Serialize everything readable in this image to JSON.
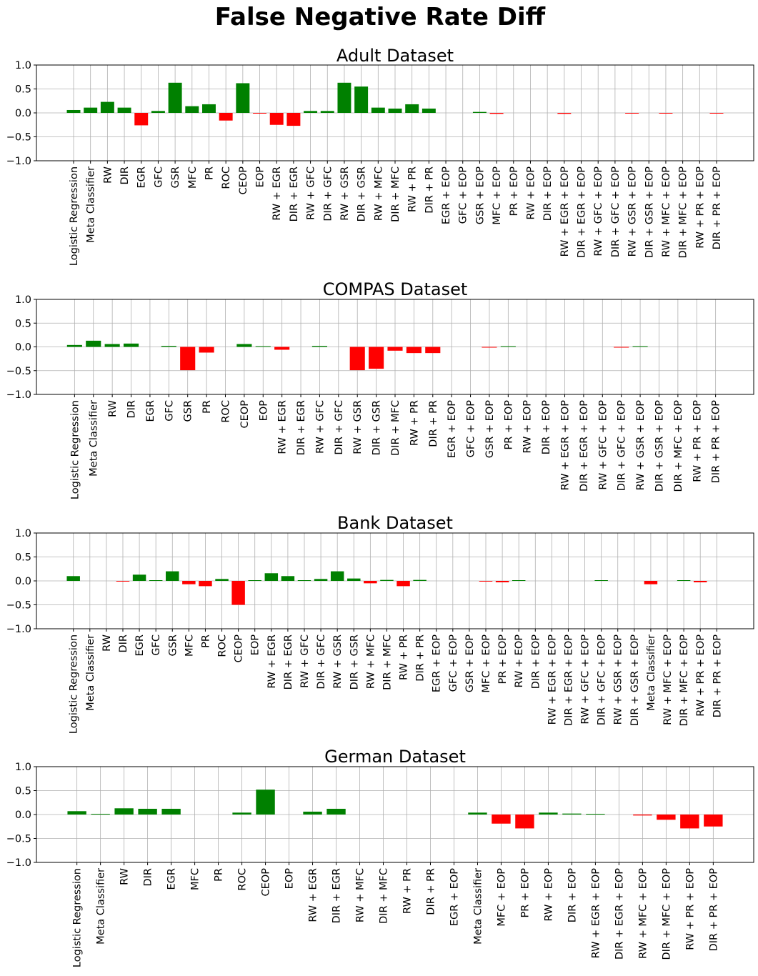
{
  "suptitle": "False Negative Rate Diff",
  "colors": {
    "positive": "#008000",
    "negative": "#ff0000",
    "grid": "#b0b0b0"
  },
  "chart_data": [
    {
      "type": "bar",
      "title": "Adult Dataset",
      "ylim": [
        -1.0,
        1.0
      ],
      "yticks": [
        "1.0",
        "0.5",
        "0.0",
        "−0.5",
        "−1.0"
      ],
      "grid": true,
      "categories": [
        "Logistic Regression",
        "Meta Classifier",
        "RW",
        "DIR",
        "EGR",
        "GFC",
        "GSR",
        "MFC",
        "PR",
        "ROC",
        "CEOP",
        "EOP",
        "RW + EGR",
        "DIR + EGR",
        "RW + GFC",
        "DIR + GFC",
        "RW + GSR",
        "DIR + GSR",
        "RW + MFC",
        "DIR + MFC",
        "RW + PR",
        "DIR + PR",
        "EGR + EOP",
        "GFC + EOP",
        "GSR + EOP",
        "MFC + EOP",
        "PR + EOP",
        "RW + EOP",
        "DIR + EOP",
        "RW + EGR + EOP",
        "DIR + EGR + EOP",
        "RW + GFC + EOP",
        "DIR + GFC + EOP",
        "RW + GSR + EOP",
        "DIR + GSR + EOP",
        "RW + MFC + EOP",
        "DIR + MFC + EOP",
        "RW + PR + EOP",
        "DIR + PR + EOP"
      ],
      "values": [
        0.06,
        0.11,
        0.23,
        0.11,
        -0.26,
        0.04,
        0.63,
        0.14,
        0.18,
        -0.16,
        0.62,
        -0.005,
        -0.25,
        -0.27,
        0.04,
        0.04,
        0.63,
        0.55,
        0.11,
        0.09,
        0.18,
        0.09,
        0.0,
        0.0,
        0.02,
        -0.02,
        0.0,
        0.0,
        0.0,
        -0.02,
        0.0,
        0.0,
        0.0,
        -0.005,
        0.0,
        -0.005,
        0.0,
        0.0,
        -0.005
      ]
    },
    {
      "type": "bar",
      "title": "COMPAS Dataset",
      "ylim": [
        -1.0,
        1.0
      ],
      "yticks": [
        "1.0",
        "0.5",
        "0.0",
        "−0.5",
        "−1.0"
      ],
      "grid": true,
      "categories": [
        "Logistic Regression",
        "Meta Classifier",
        "RW",
        "DIR",
        "EGR",
        "GFC",
        "GSR",
        "PR",
        "ROC",
        "CEOP",
        "EOP",
        "RW + EGR",
        "DIR + EGR",
        "RW + GFC",
        "DIR + GFC",
        "RW + GSR",
        "DIR + GSR",
        "DIR + MFC",
        "RW + PR",
        "DIR + PR",
        "EGR + EOP",
        "GFC + EOP",
        "GSR + EOP",
        "PR + EOP",
        "RW + EOP",
        "DIR + EOP",
        "RW + EGR + EOP",
        "DIR + EGR + EOP",
        "RW + GFC + EOP",
        "DIR + GFC + EOP",
        "RW + GSR + EOP",
        "DIR + GSR + EOP",
        "DIR + MFC + EOP",
        "RW + PR + EOP",
        "DIR + PR + EOP"
      ],
      "values": [
        0.04,
        0.13,
        0.06,
        0.07,
        0.0,
        0.02,
        -0.49,
        -0.12,
        0.0,
        0.06,
        0.01,
        -0.06,
        0.0,
        0.02,
        0.0,
        -0.49,
        -0.46,
        -0.08,
        -0.13,
        -0.13,
        0.0,
        0.0,
        -0.005,
        0.01,
        0.0,
        0.0,
        0.0,
        0.0,
        0.0,
        -0.005,
        0.01,
        0.0,
        0.0,
        0.0,
        0.0
      ]
    },
    {
      "type": "bar",
      "title": "Bank Dataset",
      "ylim": [
        -1.0,
        1.0
      ],
      "yticks": [
        "1.0",
        "0.5",
        "0.0",
        "−0.5",
        "−1.0"
      ],
      "grid": true,
      "categories": [
        "Logistic Regression",
        "Meta Classifier",
        "RW",
        "DIR",
        "EGR",
        "GFC",
        "GSR",
        "MFC",
        "PR",
        "ROC",
        "CEOP",
        "EOP",
        "RW + EGR",
        "DIR + EGR",
        "RW + GFC",
        "DIR + GFC",
        "RW + GSR",
        "DIR + GSR",
        "RW + MFC",
        "DIR + MFC",
        "RW + PR",
        "DIR + PR",
        "EGR + EOP",
        "GFC + EOP",
        "GSR + EOP",
        "MFC + EOP",
        "PR + EOP",
        "RW + EOP",
        "DIR + EOP",
        "RW + EGR + EOP",
        "DIR + EGR + EOP",
        "RW + GFC + EOP",
        "DIR + GFC + EOP",
        "RW + GSR + EOP",
        "DIR + GSR + EOP",
        "Meta Classifier",
        "RW + MFC + EOP",
        "DIR + MFC + EOP",
        "RW + PR + EOP",
        "DIR + PR + EOP"
      ],
      "values": [
        0.1,
        0.0,
        0.0,
        -0.005,
        0.13,
        0.01,
        0.2,
        -0.07,
        -0.11,
        0.04,
        -0.5,
        0.01,
        0.16,
        0.1,
        0.01,
        0.04,
        0.2,
        0.05,
        -0.05,
        0.02,
        -0.11,
        0.02,
        0.0,
        0.0,
        0.0,
        -0.005,
        -0.03,
        0.01,
        0.0,
        0.0,
        0.0,
        0.0,
        0.01,
        0.0,
        0.0,
        -0.07,
        0.0,
        0.01,
        -0.03,
        0.0
      ]
    },
    {
      "type": "bar",
      "title": "German Dataset",
      "ylim": [
        -1.0,
        1.0
      ],
      "yticks": [
        "1.0",
        "0.5",
        "0.0",
        "−0.5",
        "−1.0"
      ],
      "grid": true,
      "categories": [
        "Logistic Regression",
        "Meta Classifier",
        "RW",
        "DIR",
        "EGR",
        "MFC",
        "PR",
        "ROC",
        "CEOP",
        "EOP",
        "RW + EGR",
        "DIR + EGR",
        "RW + MFC",
        "DIR + MFC",
        "RW + PR",
        "DIR + PR",
        "EGR + EOP",
        "Meta Classifier",
        "MFC + EOP",
        "PR + EOP",
        "RW + EOP",
        "DIR + EOP",
        "RW + EGR + EOP",
        "DIR + EGR + EOP",
        "RW + MFC + EOP",
        "DIR + MFC + EOP",
        "RW + PR + EOP",
        "DIR + PR + EOP"
      ],
      "values": [
        0.07,
        0.01,
        0.13,
        0.12,
        0.12,
        0.0,
        0.0,
        0.04,
        0.52,
        0.0,
        0.06,
        0.12,
        0.0,
        0.0,
        0.0,
        0.0,
        0.0,
        0.04,
        -0.19,
        -0.29,
        0.04,
        0.02,
        0.01,
        0.0,
        -0.02,
        -0.11,
        -0.29,
        -0.25
      ]
    }
  ]
}
